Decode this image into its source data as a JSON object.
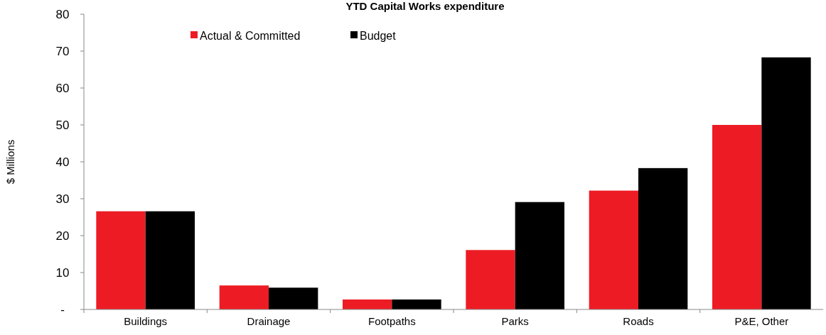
{
  "chart_data": {
    "type": "bar",
    "title": "YTD Capital Works expenditure",
    "ylabel": "$ Millions",
    "categories": [
      "Buildings",
      "Drainage",
      "Footpaths",
      "Parks",
      "Roads",
      "P&E, Other"
    ],
    "series": [
      {
        "name": "Actual & Committed",
        "color": "#ed1c24",
        "values": [
          26.6,
          6.5,
          2.7,
          16.1,
          32.2,
          50.0
        ]
      },
      {
        "name": "Budget",
        "color": "#000000",
        "values": [
          26.6,
          5.9,
          2.7,
          29.1,
          38.3,
          68.3
        ]
      }
    ],
    "ylim": [
      0,
      80
    ],
    "yticks": [
      {
        "value": 0,
        "label": "-"
      },
      10,
      20,
      30,
      40,
      50,
      60,
      70,
      80
    ],
    "grid": false,
    "legend": "top left"
  }
}
